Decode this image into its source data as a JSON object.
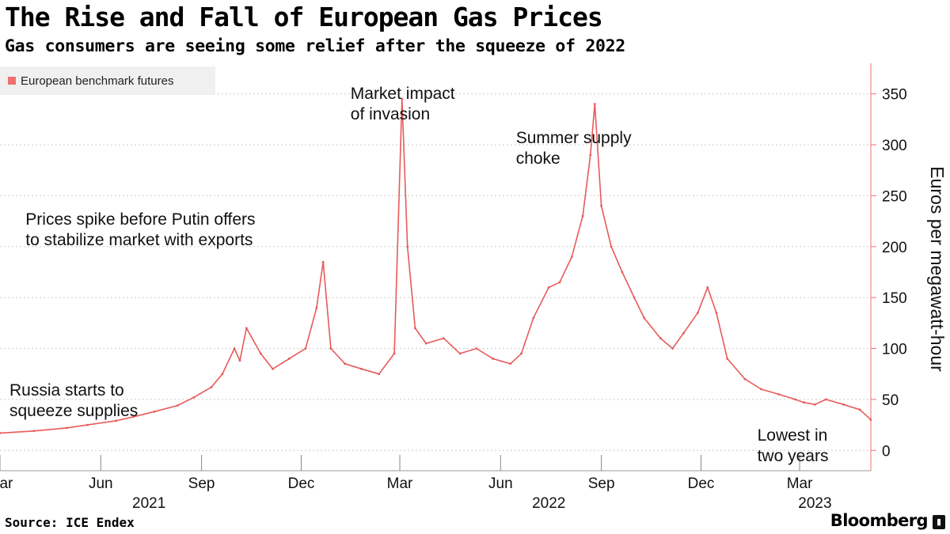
{
  "header": {
    "title": "The Rise and Fall of European Gas Prices",
    "subtitle": "Gas consumers are seeing some relief after the squeeze of 2022"
  },
  "footer": {
    "source": "Source: ICE Endex",
    "brand": "Bloomberg"
  },
  "colors": {
    "series": "#e85a5a",
    "axis": "#f07070",
    "grid": "#cccccc"
  },
  "chart_data": {
    "type": "line",
    "title": "The Rise and Fall of European Gas Prices",
    "subtitle": "Gas consumers are seeing some relief after the squeeze of 2022",
    "ylabel": "Euros per megawatt-hour",
    "xlabel": "",
    "ylim": [
      -20,
      380
    ],
    "yticks": [
      0,
      50,
      100,
      150,
      200,
      250,
      300,
      350
    ],
    "xlim": [
      "2021-03-01",
      "2023-05-05"
    ],
    "xticks": [
      {
        "date": "2021-03-01",
        "label": "Mar"
      },
      {
        "date": "2021-06-01",
        "label": "Jun"
      },
      {
        "date": "2021-09-01",
        "label": "Sep"
      },
      {
        "date": "2021-12-01",
        "label": "Dec"
      },
      {
        "date": "2022-03-01",
        "label": "Mar"
      },
      {
        "date": "2022-06-01",
        "label": "Jun"
      },
      {
        "date": "2022-09-01",
        "label": "Sep"
      },
      {
        "date": "2022-12-01",
        "label": "Dec"
      },
      {
        "date": "2023-03-01",
        "label": "Mar"
      }
    ],
    "year_labels": [
      {
        "date": "2021-07-15",
        "label": "2021"
      },
      {
        "date": "2022-07-15",
        "label": "2022"
      },
      {
        "date": "2023-03-15",
        "label": "2023"
      }
    ],
    "grid": true,
    "legend_position": "top-left",
    "series": [
      {
        "name": "European benchmark futures",
        "x": [
          "2021-03-01",
          "2021-04-01",
          "2021-05-01",
          "2021-05-20",
          "2021-06-15",
          "2021-07-01",
          "2021-07-20",
          "2021-08-10",
          "2021-08-25",
          "2021-09-10",
          "2021-09-20",
          "2021-10-01",
          "2021-10-06",
          "2021-10-12",
          "2021-10-25",
          "2021-11-05",
          "2021-11-20",
          "2021-12-05",
          "2021-12-15",
          "2021-12-21",
          "2021-12-28",
          "2022-01-10",
          "2022-01-25",
          "2022-02-10",
          "2022-02-24",
          "2022-03-03",
          "2022-03-08",
          "2022-03-15",
          "2022-03-25",
          "2022-04-10",
          "2022-04-25",
          "2022-05-10",
          "2022-05-25",
          "2022-06-10",
          "2022-06-20",
          "2022-07-01",
          "2022-07-15",
          "2022-07-25",
          "2022-08-05",
          "2022-08-15",
          "2022-08-22",
          "2022-08-26",
          "2022-09-01",
          "2022-09-10",
          "2022-09-20",
          "2022-10-01",
          "2022-10-10",
          "2022-10-25",
          "2022-11-05",
          "2022-11-15",
          "2022-11-28",
          "2022-12-07",
          "2022-12-15",
          "2022-12-25",
          "2023-01-10",
          "2023-01-25",
          "2023-02-10",
          "2023-02-25",
          "2023-03-05",
          "2023-03-15",
          "2023-03-25",
          "2023-04-10",
          "2023-04-25",
          "2023-05-05"
        ],
        "y": [
          17,
          19,
          22,
          25,
          29,
          33,
          38,
          44,
          52,
          62,
          75,
          100,
          88,
          120,
          95,
          80,
          90,
          100,
          140,
          185,
          100,
          85,
          80,
          75,
          95,
          345,
          200,
          120,
          105,
          110,
          95,
          100,
          90,
          85,
          95,
          130,
          160,
          165,
          190,
          230,
          290,
          340,
          240,
          200,
          175,
          150,
          130,
          110,
          100,
          115,
          135,
          160,
          135,
          90,
          70,
          60,
          55,
          50,
          47,
          45,
          50,
          45,
          40,
          30
        ]
      }
    ],
    "annotations": [
      {
        "date": "2021-04-01",
        "lines": [
          "Russia starts to",
          "squeeze supplies"
        ]
      },
      {
        "date": "2021-10-25",
        "lines": [
          "Prices spike before Putin offers",
          "to stabilize market with exports"
        ]
      },
      {
        "date": "2022-01-15",
        "lines": [
          "Market impact",
          "of invasion"
        ]
      },
      {
        "date": "2022-06-15",
        "lines": [
          "Summer supply",
          "choke"
        ]
      },
      {
        "date": "2023-03-05",
        "lines": [
          "Lowest in",
          "two years"
        ]
      }
    ]
  }
}
